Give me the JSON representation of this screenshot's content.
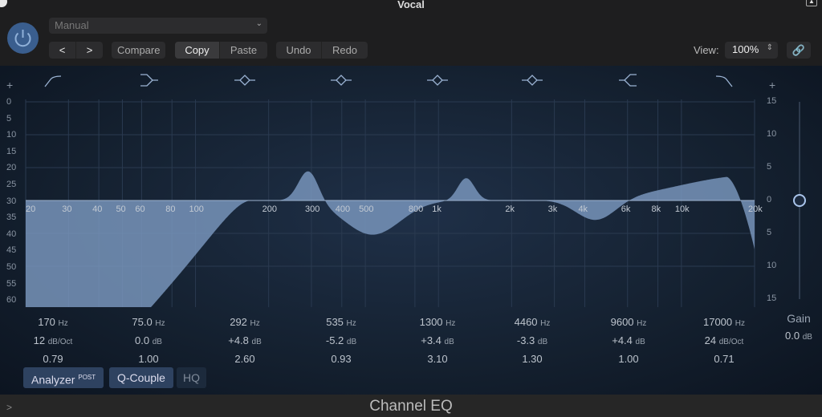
{
  "window": {
    "title": "Vocal"
  },
  "header": {
    "preset": "Manual",
    "prev_icon": "chevron-left",
    "next_icon": "chevron-right",
    "compare": "Compare",
    "copy": "Copy",
    "paste": "Paste",
    "undo": "Undo",
    "redo": "Redo",
    "view_label": "View:",
    "view_value": "100%",
    "link_icon": "link"
  },
  "graph": {
    "analyzer_scale": [
      "0",
      "5",
      "10",
      "15",
      "20",
      "25",
      "30",
      "35",
      "40",
      "45",
      "50",
      "55",
      "60"
    ],
    "gain_scale": [
      "15",
      "10",
      "5",
      "0",
      "5",
      "10",
      "15"
    ],
    "freq_labels": [
      [
        "20",
        20
      ],
      [
        "30",
        30
      ],
      [
        "40",
        40
      ],
      [
        "50",
        50
      ],
      [
        "60",
        60
      ],
      [
        "80",
        80
      ],
      [
        "100",
        100
      ],
      [
        "200",
        200
      ],
      [
        "300",
        300
      ],
      [
        "400",
        400
      ],
      [
        "500",
        500
      ],
      [
        "800",
        800
      ],
      [
        "1k",
        1000
      ],
      [
        "2k",
        2000
      ],
      [
        "3k",
        3000
      ],
      [
        "4k",
        4000
      ],
      [
        "6k",
        6000
      ],
      [
        "8k",
        8000
      ],
      [
        "10k",
        10000
      ],
      [
        "20k",
        20000
      ]
    ],
    "plus": "+",
    "curve_color": "#7b98bf"
  },
  "bands": [
    {
      "type": "low-cut",
      "freq": "170",
      "fu": "Hz",
      "gain": "12",
      "gu": "dB/Oct",
      "q": "0.79",
      "f": 170,
      "g": 12,
      "qn": 0.79
    },
    {
      "type": "low-shelf",
      "freq": "75.0",
      "fu": "Hz",
      "gain": "0.0",
      "gu": "dB",
      "q": "1.00",
      "f": 75,
      "g": 0,
      "qn": 1
    },
    {
      "type": "bell",
      "freq": "292",
      "fu": "Hz",
      "gain": "+4.8",
      "gu": "dB",
      "q": "2.60",
      "f": 292,
      "g": 4.8,
      "qn": 2.6
    },
    {
      "type": "bell",
      "freq": "535",
      "fu": "Hz",
      "gain": "-5.2",
      "gu": "dB",
      "q": "0.93",
      "f": 535,
      "g": -5.2,
      "qn": 0.93
    },
    {
      "type": "bell",
      "freq": "1300",
      "fu": "Hz",
      "gain": "+3.4",
      "gu": "dB",
      "q": "3.10",
      "f": 1300,
      "g": 3.4,
      "qn": 3.1
    },
    {
      "type": "bell",
      "freq": "4460",
      "fu": "Hz",
      "gain": "-3.3",
      "gu": "dB",
      "q": "1.30",
      "f": 4460,
      "g": -3.3,
      "qn": 1.3
    },
    {
      "type": "high-shelf",
      "freq": "9600",
      "fu": "Hz",
      "gain": "+4.4",
      "gu": "dB",
      "q": "1.00",
      "f": 9600,
      "g": 4.4,
      "qn": 1
    },
    {
      "type": "high-cut",
      "freq": "17000",
      "fu": "Hz",
      "gain": "24",
      "gu": "dB/Oct",
      "q": "0.71",
      "f": 17000,
      "g": 24,
      "qn": 0.71
    }
  ],
  "gain": {
    "label": "Gain",
    "value": "0.0",
    "unit": "dB",
    "db": 0
  },
  "buttons": {
    "analyzer": "Analyzer",
    "post": "POST",
    "qcouple": "Q-Couple",
    "hq": "HQ"
  },
  "footer": {
    "plugin_name": "Channel EQ",
    "expand_icon": "chevron-right"
  }
}
